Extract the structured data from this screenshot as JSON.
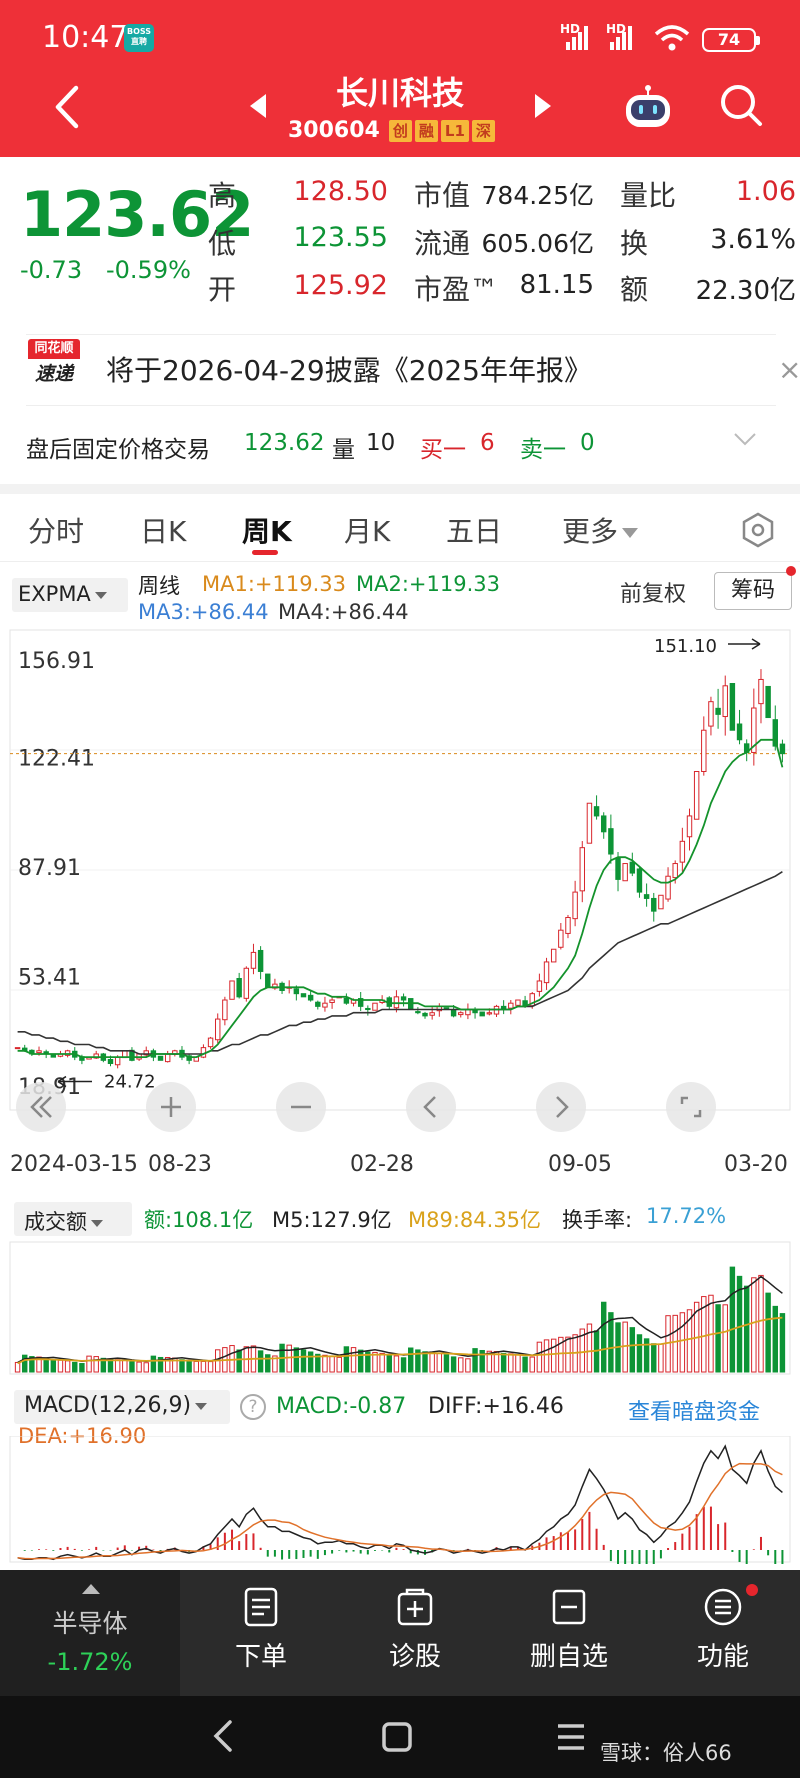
{
  "status": {
    "time": "10:47",
    "badge": "BOSS\n直聘",
    "sig1": "HD",
    "sig2": "HD",
    "battery": "74"
  },
  "nav": {
    "stock_name": "长川科技",
    "stock_code": "300604",
    "tags": [
      "创",
      "融",
      "L1",
      "深"
    ]
  },
  "quote": {
    "price": "123.62",
    "change": "-0.73",
    "change_pct": "-0.59%",
    "high_label": "高",
    "high": "128.50",
    "low_label": "低",
    "low": "123.55",
    "open_label": "开",
    "open": "125.92",
    "mktcap_label": "市值",
    "mktcap": "784.25亿",
    "float_label": "流通",
    "float": "605.06亿",
    "pe_label": "市盈™",
    "pe": "81.15",
    "volratio_label": "量比",
    "volratio": "1.06",
    "turnover_label": "换",
    "turnover": "3.61%",
    "amount_label": "额",
    "amount": "22.30亿"
  },
  "notice": {
    "logo_top": "同花顺",
    "logo_bottom": "速递",
    "text": "将于2026-04-29披露《2025年年报》",
    "close": "×"
  },
  "afterhours": {
    "label": "盘后固定价格交易",
    "price": "123.62",
    "vol_label": "量",
    "vol": "10",
    "buy_label": "买一",
    "buy": "6",
    "sell_label": "卖一",
    "sell": "0"
  },
  "tabs": [
    "分时",
    "日K",
    "周K",
    "月K",
    "五日",
    "更多"
  ],
  "indicator": {
    "select": "EXPMA",
    "period": "周线",
    "ma1": "MA1:+119.33",
    "ma2": "MA2:+119.33",
    "ma3": "MA3:+86.44",
    "ma4": "MA4:+86.44",
    "adjust": "前复权",
    "chip": "筹码"
  },
  "chart_data": {
    "type": "candlestick",
    "period": "weekly",
    "y_ticks": [
      "156.91",
      "122.41",
      "87.91",
      "53.41",
      "18.91"
    ],
    "x_ticks": [
      "2024-03-15",
      "08-23",
      "02-28",
      "09-05",
      "03-20"
    ],
    "high_marker": "151.10",
    "low_marker": "24.72",
    "current_line": 123.62,
    "ylim": [
      18.91,
      156.91
    ],
    "closes": [
      31,
      30,
      29,
      30,
      29,
      28,
      29,
      30,
      28,
      27,
      28,
      29,
      27,
      26,
      28,
      30,
      27,
      29,
      30,
      28,
      27,
      29,
      30,
      28,
      27,
      28,
      31,
      34,
      40,
      46,
      52,
      47,
      56,
      61,
      55,
      50,
      51,
      49,
      50,
      48,
      47,
      46,
      44,
      45,
      46,
      47,
      45,
      46,
      44,
      43,
      45,
      46,
      44,
      47,
      46,
      43,
      42,
      41,
      42,
      44,
      43,
      41,
      42,
      43,
      42,
      41,
      42,
      44,
      43,
      45,
      46,
      44,
      48,
      52,
      58,
      62,
      68,
      72,
      80,
      94,
      108,
      104,
      99,
      92,
      84,
      89,
      86,
      80,
      78,
      74,
      79,
      85,
      89,
      96,
      104,
      118,
      131,
      140,
      136,
      145,
      131,
      128,
      124,
      138,
      147,
      135,
      126,
      123.62
    ],
    "ma1": [
      30,
      30,
      29,
      29,
      29,
      29,
      29,
      29,
      29,
      28,
      28,
      28,
      28,
      28,
      28,
      28,
      28,
      28,
      28,
      29,
      29,
      29,
      29,
      29,
      28,
      28,
      29,
      30,
      32,
      35,
      38,
      41,
      44,
      47,
      49,
      50,
      50,
      50,
      50,
      50,
      50,
      49,
      48,
      48,
      47,
      47,
      47,
      46,
      46,
      46,
      46,
      46,
      45,
      45,
      45,
      45,
      45,
      44,
      44,
      44,
      44,
      44,
      43,
      43,
      43,
      43,
      43,
      43,
      43,
      43,
      44,
      44,
      45,
      46,
      48,
      50,
      53,
      56,
      60,
      67,
      75,
      82,
      87,
      90,
      91,
      91,
      90,
      88,
      86,
      84,
      83,
      83,
      84,
      86,
      90,
      95,
      101,
      108,
      113,
      118,
      121,
      123,
      124,
      126,
      128,
      128,
      128,
      119.33
    ],
    "ma3": [
      36,
      36,
      35,
      35,
      34,
      34,
      33,
      33,
      32,
      32,
      32,
      31,
      31,
      30,
      30,
      30,
      30,
      29,
      29,
      29,
      29,
      29,
      29,
      29,
      29,
      29,
      29,
      30,
      30,
      31,
      32,
      32,
      33,
      34,
      35,
      35,
      36,
      37,
      38,
      38,
      39,
      39,
      40,
      40,
      41,
      41,
      41,
      42,
      42,
      42,
      42,
      43,
      43,
      43,
      43,
      43,
      43,
      43,
      43,
      43,
      43,
      43,
      43,
      43,
      43,
      43,
      43,
      43,
      43,
      43,
      44,
      44,
      44,
      45,
      46,
      47,
      48,
      49,
      51,
      53,
      56,
      58,
      60,
      62,
      64,
      65,
      66,
      67,
      68,
      69,
      70,
      70,
      71,
      72,
      73,
      74,
      75,
      76,
      77,
      78,
      79,
      80,
      81,
      82,
      83,
      84,
      85,
      86.44
    ]
  },
  "volume": {
    "select": "成交额",
    "amount": "额:108.1亿",
    "m5": "M5:127.9亿",
    "m89": "M89:84.35亿",
    "turnover_label": "换手率:",
    "turnover": "17.72%"
  },
  "macd": {
    "select": "MACD(12,26,9)",
    "help": "?",
    "macd": "MACD:-0.87",
    "diff": "DIFF:+16.46",
    "dea": "DEA:+16.90",
    "link": "查看暗盘资金"
  },
  "bottom_bar": {
    "sector_name": "半导体",
    "sector_chg": "-1.72%",
    "items": [
      "下单",
      "诊股",
      "删自选",
      "功能"
    ]
  },
  "watermark": "雪球：俗人66",
  "colors": {
    "up": "#d8262c",
    "down": "#0d9436",
    "header": "#ee3038",
    "ma1": "#d98a1c",
    "ma2": "#0d9436"
  }
}
